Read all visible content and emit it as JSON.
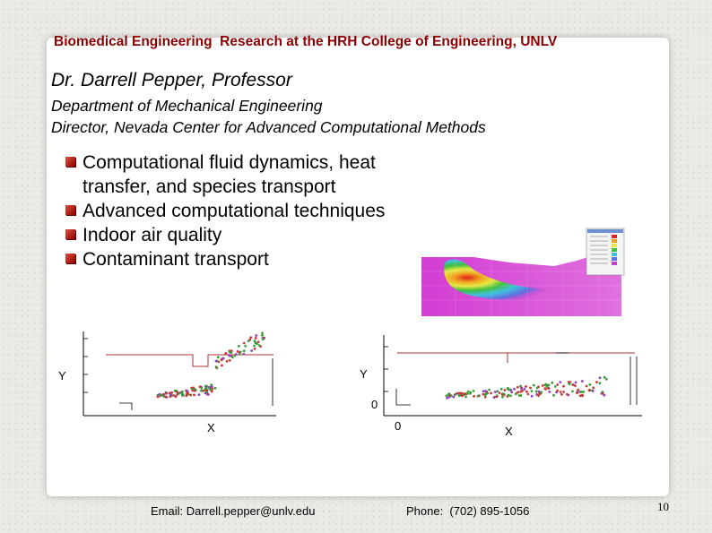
{
  "header": {
    "title": "Biomedical Engineering  Research at the HRH College of Engineering, UNLV"
  },
  "profile": {
    "name": "Dr. Darrell Pepper, Professor",
    "department": "Department of Mechanical Engineering",
    "director": "Director, Nevada Center for Advanced Computational Methods"
  },
  "bullets": [
    "Computational fluid dynamics, heat",
    "transfer, and species transport",
    "Advanced computational techniques",
    "Indoor air quality",
    "Contaminant transport"
  ],
  "plots": {
    "left": {
      "xlabel": "X",
      "ylabel": "Y"
    },
    "right": {
      "xlabel": "X",
      "ylabel": "Y",
      "zero_label": "0"
    }
  },
  "footer": {
    "email": "Email: Darrell.pepper@unlv.edu",
    "phone": "Phone:  (702) 895-1056",
    "page": "10"
  },
  "colors": {
    "header": "#8b0000",
    "bullet_marker": "#c0392b"
  }
}
